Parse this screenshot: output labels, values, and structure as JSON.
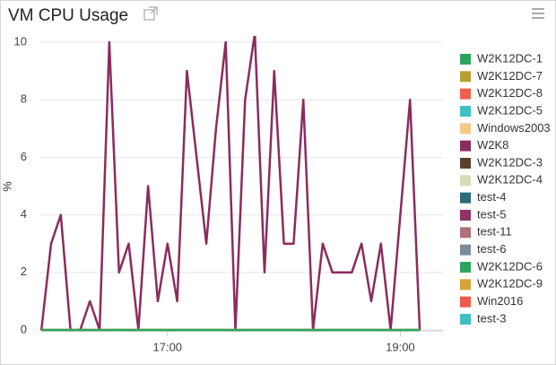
{
  "chart_data": {
    "type": "line",
    "title": "VM CPU Usage",
    "y_label": "%",
    "x": [
      "15:55",
      "16:00",
      "16:05",
      "16:10",
      "16:15",
      "16:20",
      "16:25",
      "16:30",
      "16:35",
      "16:40",
      "16:45",
      "16:50",
      "16:55",
      "17:00",
      "17:05",
      "17:10",
      "17:15",
      "17:20",
      "17:25",
      "17:30",
      "17:35",
      "17:40",
      "17:45",
      "17:50",
      "17:55",
      "18:00",
      "18:05",
      "18:10",
      "18:15",
      "18:20",
      "18:25",
      "18:30",
      "18:35",
      "18:40",
      "18:45",
      "18:50",
      "18:55",
      "19:00",
      "19:05",
      "19:10"
    ],
    "xlim": [
      "15:54",
      "19:22"
    ],
    "xticks": [
      "17:00",
      "19:00"
    ],
    "ylim": [
      0,
      10
    ],
    "yticks": [
      0,
      2,
      4,
      6,
      8,
      10
    ],
    "grid": true,
    "legend": "right",
    "series": [
      {
        "name": "W2K12DC-1",
        "color": "#2ca55e",
        "values": [
          0,
          0,
          0,
          0,
          0,
          0,
          0,
          0,
          0,
          0,
          0,
          0,
          0,
          0,
          0,
          0,
          0,
          0,
          0,
          0,
          0,
          0,
          0,
          0,
          0,
          0,
          0,
          0,
          0,
          0,
          0,
          0,
          0,
          0,
          0,
          0,
          0,
          0,
          0,
          0
        ]
      },
      {
        "name": "W2K12DC-7",
        "color": "#b8a030",
        "values": [
          0,
          0,
          0,
          0,
          0,
          0,
          0,
          0,
          0,
          0,
          0,
          0,
          0,
          0,
          0,
          0,
          0,
          0,
          0,
          0,
          0,
          0,
          0,
          0,
          0,
          0,
          0,
          0,
          0,
          0,
          0,
          0,
          0,
          0,
          0,
          0,
          0,
          0,
          0,
          0
        ]
      },
      {
        "name": "W2K12DC-8",
        "color": "#f0604c",
        "values": [
          0,
          0,
          0,
          0,
          0,
          0,
          0,
          0,
          0,
          0,
          0,
          0,
          0,
          0,
          0,
          0,
          0,
          0,
          0,
          0,
          0,
          0,
          0,
          0,
          0,
          0,
          0,
          0,
          0,
          0,
          0,
          0,
          0,
          0,
          0,
          0,
          0,
          0,
          0,
          0
        ]
      },
      {
        "name": "W2K12DC-5",
        "color": "#3fbfc4",
        "values": [
          0,
          0,
          0,
          0,
          0,
          0,
          0,
          0,
          0,
          0,
          0,
          0,
          0,
          0,
          0,
          0,
          0,
          0,
          0,
          0,
          0,
          0,
          0,
          0,
          0,
          0,
          0,
          0,
          0,
          0,
          0,
          0,
          0,
          0,
          0,
          0,
          0,
          0,
          0,
          0
        ]
      },
      {
        "name": "Windows2003",
        "color": "#f5c98a",
        "values": [
          0,
          0,
          0,
          0,
          0,
          0,
          0,
          0,
          0,
          0,
          0,
          0,
          0,
          0,
          0,
          0,
          0,
          0,
          0,
          0,
          0,
          0,
          0,
          0,
          0,
          0,
          0,
          0,
          0,
          0,
          0,
          0,
          0,
          0,
          0,
          0,
          0,
          0,
          0,
          0
        ]
      },
      {
        "name": "W2K8",
        "color": "#8b2c5e",
        "values": [
          0,
          3,
          4,
          0,
          0,
          1,
          0,
          10,
          2,
          3,
          0,
          5,
          1,
          3,
          1,
          9,
          6,
          3,
          7,
          10,
          0,
          8,
          10.3,
          2,
          9,
          3,
          3,
          8,
          0,
          3,
          2,
          2,
          2,
          3,
          1,
          3,
          0,
          4,
          8,
          0
        ]
      },
      {
        "name": "W2K12DC-3",
        "color": "#5c3f2c",
        "values": [
          0,
          0,
          0,
          0,
          0,
          0,
          0,
          0,
          0,
          0,
          0,
          0,
          0,
          0,
          0,
          0,
          0,
          0,
          0,
          0,
          0,
          0,
          0,
          0,
          0,
          0,
          0,
          0,
          0,
          0,
          0,
          0,
          0,
          0,
          0,
          0,
          0,
          0,
          0,
          0
        ]
      },
      {
        "name": "W2K12DC-4",
        "color": "#d7dcb4",
        "values": [
          0,
          0,
          0,
          0,
          0,
          0,
          0,
          0,
          0,
          0,
          0,
          0,
          0,
          0,
          0,
          0,
          0,
          0,
          0,
          0,
          0,
          0,
          0,
          0,
          0,
          0,
          0,
          0,
          0,
          0,
          0,
          0,
          0,
          0,
          0,
          0,
          0,
          0,
          0,
          0
        ]
      },
      {
        "name": "test-4",
        "color": "#2e6b7a",
        "values": [
          0,
          0,
          0,
          0,
          0,
          0,
          0,
          0,
          0,
          0,
          0,
          0,
          0,
          0,
          0,
          0,
          0,
          0,
          0,
          0,
          0,
          0,
          0,
          0,
          0,
          0,
          0,
          0,
          0,
          0,
          0,
          0,
          0,
          0,
          0,
          0,
          0,
          0,
          0,
          0
        ]
      },
      {
        "name": "test-5",
        "color": "#8e3368",
        "values": [
          0,
          0,
          0,
          0,
          0,
          0,
          0,
          0,
          0,
          0,
          0,
          0,
          0,
          0,
          0,
          0,
          0,
          0,
          0,
          0,
          0,
          0,
          0,
          0,
          0,
          0,
          0,
          0,
          0,
          0,
          0,
          0,
          0,
          0,
          0,
          0,
          0,
          0,
          0,
          0
        ]
      },
      {
        "name": "test-11",
        "color": "#b07078",
        "values": [
          0,
          0,
          0,
          0,
          0,
          0,
          0,
          0,
          0,
          0,
          0,
          0,
          0,
          0,
          0,
          0,
          0,
          0,
          0,
          0,
          0,
          0,
          0,
          0,
          0,
          0,
          0,
          0,
          0,
          0,
          0,
          0,
          0,
          0,
          0,
          0,
          0,
          0,
          0,
          0
        ]
      },
      {
        "name": "test-6",
        "color": "#7b8b99",
        "values": [
          0,
          0,
          0,
          0,
          0,
          0,
          0,
          0,
          0,
          0,
          0,
          0,
          0,
          0,
          0,
          0,
          0,
          0,
          0,
          0,
          0,
          0,
          0,
          0,
          0,
          0,
          0,
          0,
          0,
          0,
          0,
          0,
          0,
          0,
          0,
          0,
          0,
          0,
          0,
          0
        ]
      },
      {
        "name": "W2K12DC-6",
        "color": "#2ca55e",
        "values": [
          0,
          0,
          0,
          0,
          0,
          0,
          0,
          0,
          0,
          0,
          0,
          0,
          0,
          0,
          0,
          0,
          0,
          0,
          0,
          0,
          0,
          0,
          0,
          0,
          0,
          0,
          0,
          0,
          0,
          0,
          0,
          0,
          0,
          0,
          0,
          0,
          0,
          0,
          0,
          0
        ]
      },
      {
        "name": "W2K12DC-9",
        "color": "#d4a63a",
        "values": [
          0,
          0,
          0,
          0,
          0,
          0,
          0,
          0,
          0,
          0,
          0,
          0,
          0,
          0,
          0,
          0,
          0,
          0,
          0,
          0,
          0,
          0,
          0,
          0,
          0,
          0,
          0,
          0,
          0,
          0,
          0,
          0,
          0,
          0,
          0,
          0,
          0,
          0,
          0,
          0
        ]
      },
      {
        "name": "Win2016",
        "color": "#f05a4a",
        "values": [
          0,
          0,
          0,
          0,
          0,
          0,
          0,
          0,
          0,
          0,
          0,
          0,
          0,
          0,
          0,
          0,
          0,
          0,
          0,
          0,
          0,
          0,
          0,
          0,
          0,
          0,
          0,
          0,
          0,
          0,
          0,
          0,
          0,
          0,
          0,
          0,
          0,
          0,
          0,
          0
        ]
      },
      {
        "name": "test-3",
        "color": "#3fbfc4",
        "values": [
          0,
          0,
          0,
          0,
          0,
          0,
          0,
          0,
          0,
          0,
          0,
          0,
          0,
          0,
          0,
          0,
          0,
          0,
          0,
          0,
          0,
          0,
          0,
          0,
          0,
          0,
          0,
          0,
          0,
          0,
          0,
          0,
          0,
          0,
          0,
          0,
          0,
          0,
          0,
          0
        ]
      }
    ]
  }
}
